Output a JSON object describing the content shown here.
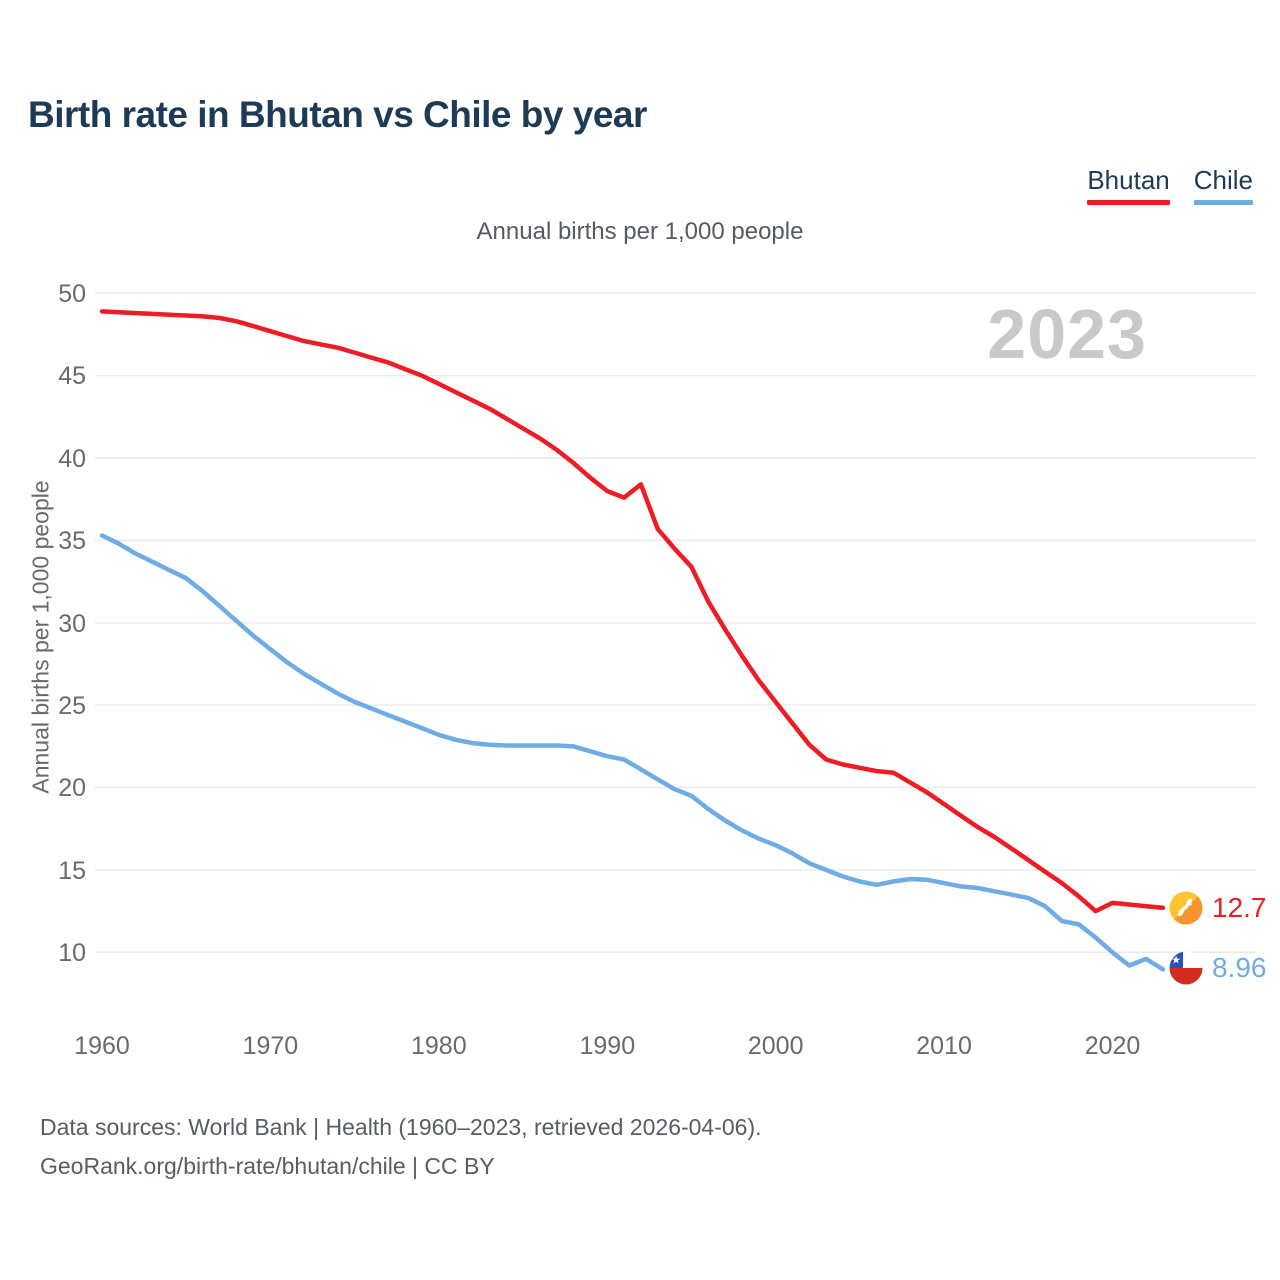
{
  "title": "Birth rate in Bhutan vs Chile by year",
  "subtitle": "Annual births per 1,000 people",
  "watermark": "2023",
  "y_axis_title": "Annual births per 1,000 people",
  "legend": {
    "items": [
      {
        "label": "Bhutan",
        "color": "#ee1c25"
      },
      {
        "label": "Chile",
        "color": "#70ace4"
      }
    ]
  },
  "end_labels": {
    "bhutan": {
      "value": "12.7",
      "color": "#ee1c25",
      "flag": "bhutan-flag"
    },
    "chile": {
      "value": "8.96",
      "color": "#70ace4",
      "flag": "chile-flag"
    }
  },
  "flag_colors": {
    "bhutan_yellow": "#fdc62f",
    "bhutan_orange": "#f6952c",
    "bhutan_dragon": "#ffffff",
    "chile_blue": "#2a52be",
    "chile_red": "#d52b1e",
    "chile_white": "#ffffff"
  },
  "footer": {
    "line1": "Data sources: World Bank | Health (1960–2023, retrieved 2026-04-06).",
    "line2": "GeoRank.org/birth-rate/bhutan/chile | CC BY"
  },
  "chart_data": {
    "type": "line",
    "title": "Birth rate in Bhutan vs Chile by year",
    "subtitle": "Annual births per 1,000 people",
    "xlabel": "",
    "ylabel": "Annual births per 1,000 people",
    "ylim": [
      8,
      50
    ],
    "grid": "horizontal",
    "legend_position": "top-right",
    "ytick_labels": [
      "50",
      "45",
      "40",
      "35",
      "30",
      "25",
      "20",
      "15",
      "10"
    ],
    "xtick_labels": [
      "1960",
      "1970",
      "1980",
      "1990",
      "2000",
      "2010",
      "2020"
    ],
    "x": [
      1960,
      1961,
      1962,
      1963,
      1964,
      1965,
      1966,
      1967,
      1968,
      1969,
      1970,
      1971,
      1972,
      1973,
      1974,
      1975,
      1976,
      1977,
      1978,
      1979,
      1980,
      1981,
      1982,
      1983,
      1984,
      1985,
      1986,
      1987,
      1988,
      1989,
      1990,
      1991,
      1992,
      1993,
      1994,
      1995,
      1996,
      1997,
      1998,
      1999,
      2000,
      2001,
      2002,
      2003,
      2004,
      2005,
      2006,
      2007,
      2008,
      2009,
      2010,
      2011,
      2012,
      2013,
      2014,
      2015,
      2016,
      2017,
      2018,
      2019,
      2020,
      2021,
      2022,
      2023
    ],
    "series": [
      {
        "name": "Bhutan",
        "color": "#ee1c25",
        "final_value_label": "12.7",
        "values": [
          48.9,
          48.85,
          48.8,
          48.75,
          48.7,
          48.65,
          48.6,
          48.5,
          48.3,
          48.0,
          47.7,
          47.4,
          47.1,
          46.9,
          46.7,
          46.4,
          46.1,
          45.8,
          45.4,
          45.0,
          44.5,
          44.0,
          43.5,
          43.0,
          42.4,
          41.8,
          41.2,
          40.5,
          39.7,
          38.8,
          38.0,
          37.6,
          38.4,
          35.7,
          34.5,
          33.4,
          31.3,
          29.6,
          28.0,
          26.5,
          25.2,
          23.9,
          22.6,
          21.7,
          21.4,
          21.2,
          21.0,
          20.9,
          20.3,
          19.7,
          19.0,
          18.3,
          17.6,
          17.0,
          16.3,
          15.6,
          14.9,
          14.2,
          13.4,
          12.5,
          13.0,
          12.9,
          12.8,
          12.7
        ]
      },
      {
        "name": "Chile",
        "color": "#70ace4",
        "final_value_label": "8.96",
        "values": [
          35.3,
          34.8,
          34.2,
          33.7,
          33.2,
          32.7,
          31.9,
          31.0,
          30.1,
          29.2,
          28.4,
          27.6,
          26.9,
          26.3,
          25.7,
          25.2,
          24.8,
          24.4,
          24.0,
          23.6,
          23.2,
          22.9,
          22.7,
          22.6,
          22.55,
          22.55,
          22.55,
          22.55,
          22.5,
          22.2,
          21.9,
          21.7,
          21.1,
          20.5,
          19.9,
          19.5,
          18.7,
          18.0,
          17.4,
          16.9,
          16.5,
          16.0,
          15.4,
          15.0,
          14.6,
          14.3,
          14.1,
          14.3,
          14.45,
          14.4,
          14.2,
          14.0,
          13.9,
          13.7,
          13.5,
          13.3,
          12.8,
          11.9,
          11.7,
          10.9,
          10.0,
          9.2,
          9.6,
          8.96
        ]
      }
    ]
  }
}
